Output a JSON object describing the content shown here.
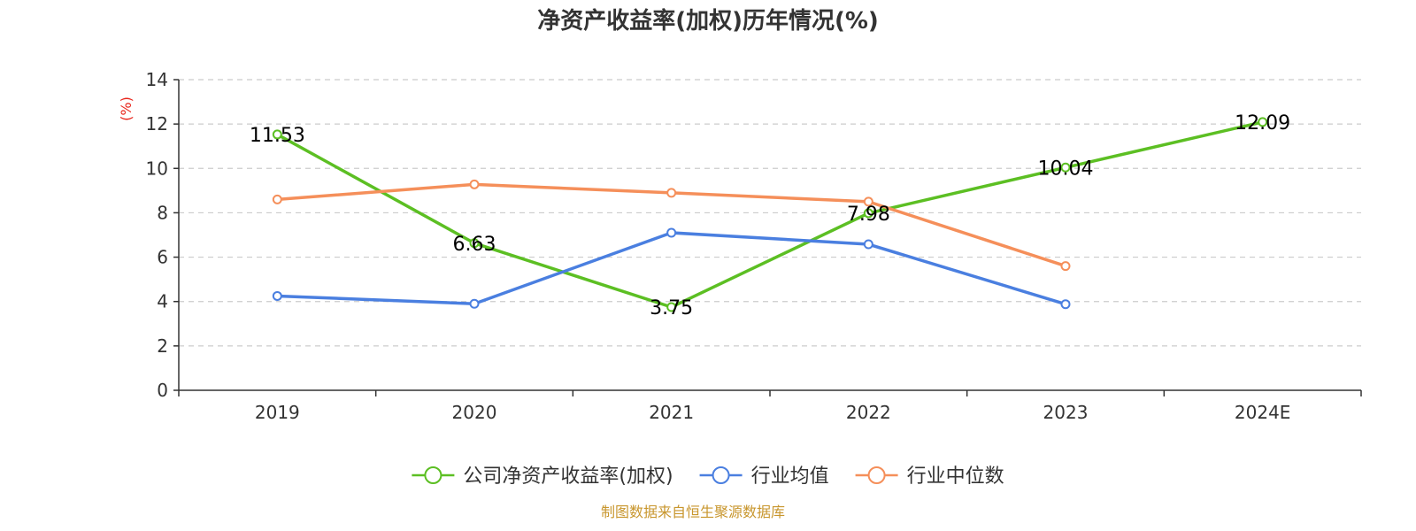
{
  "chart_data": {
    "type": "line",
    "title": "净资产收益率(加权)历年情况(%)",
    "ylabel": "(%)",
    "xlabel": "",
    "categories": [
      "2019",
      "2020",
      "2021",
      "2022",
      "2023",
      "2024E"
    ],
    "ylim": [
      0,
      14
    ],
    "yticks": [
      0,
      2,
      4,
      6,
      8,
      10,
      12,
      14
    ],
    "grid": true,
    "legend_position": "bottom-center",
    "series": [
      {
        "name": "公司净资产收益率(加权)",
        "color": "#5cbf23",
        "values": [
          11.53,
          6.63,
          3.75,
          7.98,
          10.04,
          12.09
        ],
        "data_labels": [
          "11.53",
          "6.63",
          "3.75",
          "7.98",
          "10.04",
          "12.09"
        ]
      },
      {
        "name": "行业均值",
        "color": "#4a7fe0",
        "values": [
          4.25,
          3.9,
          7.1,
          6.58,
          3.88,
          null
        ]
      },
      {
        "name": "行业中位数",
        "color": "#f58f5a",
        "values": [
          8.6,
          9.28,
          8.9,
          8.5,
          5.6,
          null
        ]
      }
    ],
    "ylabel_color": "#e8261c"
  },
  "source_text": "制图数据来自恒生聚源数据库",
  "source_color": "#c8962d"
}
